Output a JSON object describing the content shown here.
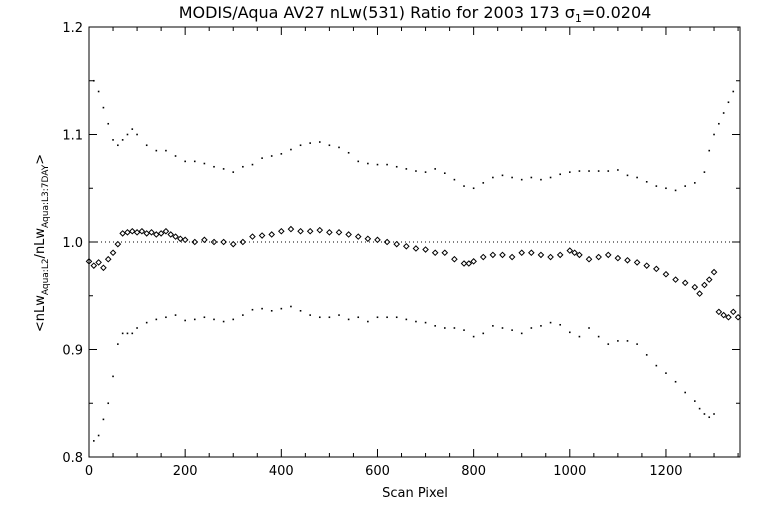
{
  "chart_data": {
    "type": "scatter",
    "title_prefix": "MODIS/Aqua AV27 nLw(531) Ratio for 2003 173 ",
    "title_sigma": "σ",
    "title_sigma_sub": "1",
    "title_suffix": "=0.0204",
    "xlabel": "Scan Pixel",
    "ylabel_parts": [
      "<nLw",
      "Aqua:L2",
      "/nLw",
      "Aqua:L3:7DAY",
      ">"
    ],
    "xlim": [
      0,
      1354
    ],
    "ylim": [
      0.8,
      1.2
    ],
    "xticks": [
      "0",
      "200",
      "400",
      "600",
      "800",
      "1000",
      "1200"
    ],
    "yticks": [
      "0.8",
      "0.9",
      "1.0",
      "1.1",
      "1.2"
    ],
    "reference_line": 1.0,
    "grid": false,
    "series": [
      {
        "role": "mean ratio (diamond markers)",
        "color": "#000000",
        "x": [
          0,
          10,
          20,
          30,
          40,
          50,
          60,
          70,
          80,
          90,
          100,
          110,
          120,
          130,
          140,
          150,
          160,
          170,
          180,
          190,
          200,
          220,
          240,
          260,
          280,
          300,
          320,
          340,
          360,
          380,
          400,
          420,
          440,
          460,
          480,
          500,
          520,
          540,
          560,
          580,
          600,
          620,
          640,
          660,
          680,
          700,
          720,
          740,
          760,
          780,
          790,
          800,
          820,
          840,
          860,
          880,
          900,
          920,
          940,
          960,
          980,
          1000,
          1010,
          1020,
          1040,
          1060,
          1080,
          1100,
          1120,
          1140,
          1160,
          1180,
          1200,
          1220,
          1240,
          1260,
          1270,
          1280,
          1290,
          1300,
          1310,
          1320,
          1330,
          1340,
          1350
        ],
        "y": [
          0.982,
          0.978,
          0.981,
          0.976,
          0.984,
          0.99,
          0.998,
          1.008,
          1.009,
          1.01,
          1.009,
          1.01,
          1.008,
          1.009,
          1.007,
          1.008,
          1.01,
          1.007,
          1.005,
          1.003,
          1.002,
          1.0,
          1.002,
          1.0,
          1.0,
          0.998,
          1.0,
          1.005,
          1.006,
          1.007,
          1.01,
          1.012,
          1.01,
          1.01,
          1.011,
          1.009,
          1.009,
          1.007,
          1.005,
          1.003,
          1.002,
          1.0,
          0.998,
          0.996,
          0.994,
          0.993,
          0.99,
          0.99,
          0.984,
          0.98,
          0.98,
          0.982,
          0.986,
          0.988,
          0.988,
          0.986,
          0.99,
          0.99,
          0.988,
          0.986,
          0.988,
          0.992,
          0.99,
          0.988,
          0.984,
          0.986,
          0.988,
          0.985,
          0.983,
          0.981,
          0.978,
          0.975,
          0.97,
          0.965,
          0.962,
          0.958,
          0.952,
          0.96,
          0.965,
          0.972,
          0.935,
          0.932,
          0.93,
          0.935,
          0.93
        ]
      },
      {
        "role": "upper bound (dotted)",
        "color": "#000000",
        "x": [
          10,
          20,
          30,
          40,
          50,
          60,
          70,
          80,
          90,
          100,
          120,
          140,
          160,
          180,
          200,
          220,
          240,
          260,
          280,
          300,
          320,
          340,
          360,
          380,
          400,
          420,
          440,
          460,
          480,
          500,
          520,
          540,
          560,
          580,
          600,
          620,
          640,
          660,
          680,
          700,
          720,
          740,
          760,
          780,
          800,
          820,
          840,
          860,
          880,
          900,
          920,
          940,
          960,
          980,
          1000,
          1020,
          1040,
          1060,
          1080,
          1100,
          1120,
          1140,
          1160,
          1180,
          1200,
          1220,
          1240,
          1260,
          1280,
          1290,
          1300,
          1310,
          1320,
          1330,
          1340
        ],
        "y": [
          1.15,
          1.14,
          1.125,
          1.11,
          1.095,
          1.09,
          1.095,
          1.1,
          1.105,
          1.1,
          1.09,
          1.085,
          1.085,
          1.08,
          1.075,
          1.075,
          1.073,
          1.07,
          1.068,
          1.065,
          1.07,
          1.072,
          1.078,
          1.08,
          1.082,
          1.086,
          1.09,
          1.092,
          1.093,
          1.09,
          1.088,
          1.083,
          1.075,
          1.073,
          1.072,
          1.072,
          1.07,
          1.068,
          1.066,
          1.065,
          1.068,
          1.064,
          1.058,
          1.052,
          1.05,
          1.055,
          1.06,
          1.062,
          1.06,
          1.058,
          1.06,
          1.058,
          1.06,
          1.063,
          1.065,
          1.066,
          1.066,
          1.066,
          1.066,
          1.067,
          1.062,
          1.06,
          1.056,
          1.052,
          1.05,
          1.048,
          1.052,
          1.055,
          1.065,
          1.085,
          1.1,
          1.11,
          1.12,
          1.13,
          1.14
        ]
      },
      {
        "role": "lower bound (dotted)",
        "color": "#000000",
        "x": [
          10,
          20,
          30,
          40,
          50,
          60,
          70,
          80,
          90,
          100,
          120,
          140,
          160,
          180,
          200,
          220,
          240,
          260,
          280,
          300,
          320,
          340,
          360,
          380,
          400,
          420,
          440,
          460,
          480,
          500,
          520,
          540,
          560,
          580,
          600,
          620,
          640,
          660,
          680,
          700,
          720,
          740,
          760,
          780,
          800,
          820,
          840,
          860,
          880,
          900,
          920,
          940,
          960,
          980,
          1000,
          1020,
          1040,
          1060,
          1080,
          1100,
          1120,
          1140,
          1160,
          1180,
          1200,
          1220,
          1240,
          1260,
          1270,
          1280,
          1290,
          1300
        ],
        "y": [
          0.815,
          0.82,
          0.835,
          0.85,
          0.875,
          0.905,
          0.915,
          0.915,
          0.915,
          0.92,
          0.925,
          0.928,
          0.93,
          0.932,
          0.927,
          0.928,
          0.93,
          0.928,
          0.926,
          0.928,
          0.932,
          0.937,
          0.938,
          0.936,
          0.938,
          0.94,
          0.936,
          0.932,
          0.93,
          0.93,
          0.932,
          0.928,
          0.93,
          0.926,
          0.93,
          0.93,
          0.93,
          0.928,
          0.926,
          0.925,
          0.922,
          0.92,
          0.92,
          0.918,
          0.912,
          0.915,
          0.922,
          0.92,
          0.918,
          0.915,
          0.92,
          0.922,
          0.925,
          0.923,
          0.916,
          0.912,
          0.92,
          0.912,
          0.905,
          0.908,
          0.908,
          0.905,
          0.895,
          0.885,
          0.878,
          0.87,
          0.86,
          0.852,
          0.845,
          0.84,
          0.837,
          0.84
        ]
      }
    ]
  }
}
